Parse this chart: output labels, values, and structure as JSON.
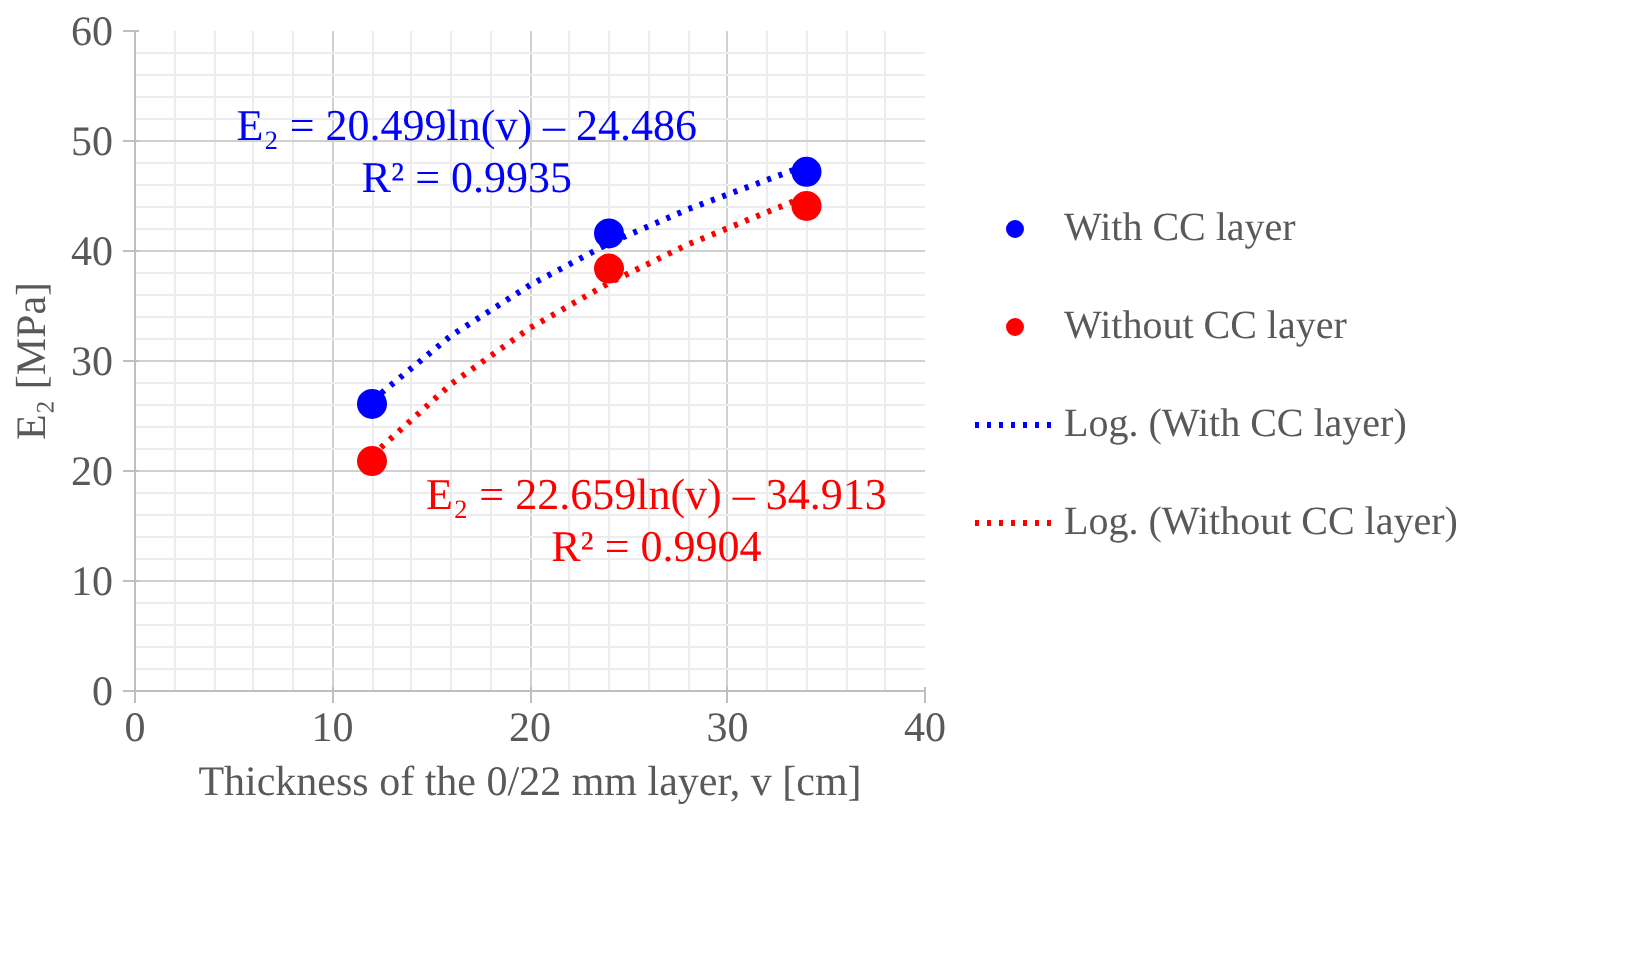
{
  "chart_data": {
    "type": "scatter",
    "xlabel": "Thickness of the 0/22 mm layer, v [cm]",
    "ylabel": "E₂ [MPa]",
    "x": [
      12,
      24,
      34
    ],
    "series": [
      {
        "name": "With CC layer",
        "color": "#0000ff",
        "values": [
          26.1,
          41.6,
          47.2
        ],
        "marker": "circle"
      },
      {
        "name": "Without CC layer",
        "color": "#ff0000",
        "values": [
          20.9,
          38.4,
          44.1
        ],
        "marker": "circle"
      },
      {
        "name": "Log. (With CC layer)",
        "type": "line",
        "line_style": "dotted",
        "color": "#0000ff",
        "x": [
          12,
          16,
          20,
          24,
          28,
          34
        ],
        "values": [
          26.4,
          32.3,
          36.9,
          40.7,
          43.8,
          47.8
        ]
      },
      {
        "name": "Log. (Without CC layer)",
        "type": "line",
        "line_style": "dotted",
        "color": "#ff0000",
        "x": [
          12,
          16,
          20,
          24,
          28,
          34
        ],
        "values": [
          21.4,
          27.9,
          33.0,
          37.1,
          40.6,
          45.0
        ]
      }
    ],
    "annotations": [
      "E₂ = 20.499ln(v) – 24.486\nR² = 0.9935",
      "E₂ = 22.659ln(v) – 34.913\nR² = 0.9904"
    ],
    "xlim": [
      0,
      40
    ],
    "xticks": [
      0,
      10,
      20,
      30,
      40
    ],
    "ylim": [
      0,
      60
    ],
    "yticks": [
      0,
      10,
      20,
      30,
      40,
      50,
      60
    ],
    "grid": true,
    "legend": "right"
  }
}
